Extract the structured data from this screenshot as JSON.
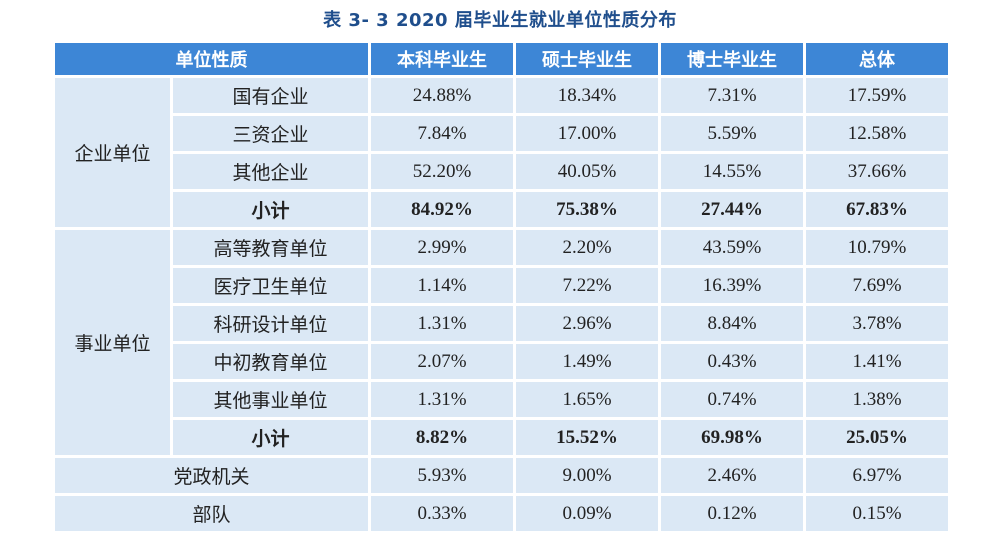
{
  "title": "表 3- 3    2020 届毕业生就业单位性质分布",
  "headers": [
    "单位性质",
    "本科毕业生",
    "硕士毕业生",
    "博士毕业生",
    "总体"
  ],
  "groups": [
    {
      "name": "企业单位",
      "rows": [
        {
          "label": "国有企业",
          "values": [
            "24.88%",
            "18.34%",
            "7.31%",
            "17.59%"
          ]
        },
        {
          "label": "三资企业",
          "values": [
            "7.84%",
            "17.00%",
            "5.59%",
            "12.58%"
          ]
        },
        {
          "label": "其他企业",
          "values": [
            "52.20%",
            "40.05%",
            "14.55%",
            "37.66%"
          ]
        },
        {
          "label": "小计",
          "values": [
            "84.92%",
            "75.38%",
            "27.44%",
            "67.83%"
          ]
        }
      ]
    },
    {
      "name": "事业单位",
      "rows": [
        {
          "label": "高等教育单位",
          "values": [
            "2.99%",
            "2.20%",
            "43.59%",
            "10.79%"
          ]
        },
        {
          "label": "医疗卫生单位",
          "values": [
            "1.14%",
            "7.22%",
            "16.39%",
            "7.69%"
          ]
        },
        {
          "label": "科研设计单位",
          "values": [
            "1.31%",
            "2.96%",
            "8.84%",
            "3.78%"
          ]
        },
        {
          "label": "中初教育单位",
          "values": [
            "2.07%",
            "1.49%",
            "0.43%",
            "1.41%"
          ]
        },
        {
          "label": "其他事业单位",
          "values": [
            "1.31%",
            "1.65%",
            "0.74%",
            "1.38%"
          ]
        },
        {
          "label": "小计",
          "values": [
            "8.82%",
            "15.52%",
            "69.98%",
            "25.05%"
          ]
        }
      ]
    }
  ],
  "single_rows": [
    {
      "label": "党政机关",
      "values": [
        "5.93%",
        "9.00%",
        "2.46%",
        "6.97%"
      ]
    },
    {
      "label": "部队",
      "values": [
        "0.33%",
        "0.09%",
        "0.12%",
        "0.15%"
      ]
    }
  ],
  "colors": {
    "header_bg": "#3d86d6",
    "cell_bg": "#dbe8f5",
    "title": "#1f4e8c"
  }
}
